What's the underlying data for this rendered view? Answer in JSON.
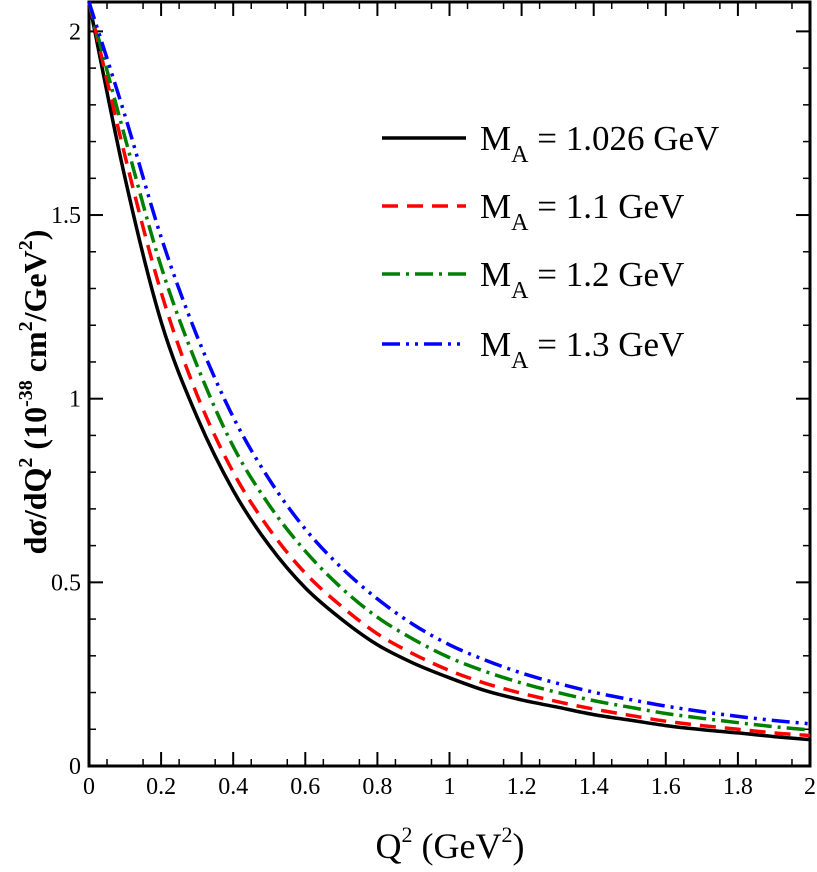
{
  "chart_data": {
    "type": "line",
    "title": "",
    "xlabel": {
      "base": "Q",
      "sup": "2",
      "unit_open": " (GeV",
      "unit_sup": "2",
      "unit_close": ")"
    },
    "ylabel": {
      "base": "dσ/dQ",
      "sup1": "2",
      "unit_open": " (10",
      "exp": "-38",
      "mid": " cm",
      "sup2": "2",
      "mid2": "/GeV",
      "sup3": "2",
      "close": ")"
    },
    "xlim": [
      0,
      2
    ],
    "ylim": [
      0,
      2.08
    ],
    "x_ticks": [
      "0",
      "0.2",
      "0.4",
      "0.6",
      "0.8",
      "1",
      "1.2",
      "1.4",
      "1.6",
      "1.8",
      "2"
    ],
    "x_tick_values": [
      0,
      0.2,
      0.4,
      0.6,
      0.8,
      1,
      1.2,
      1.4,
      1.6,
      1.8,
      2
    ],
    "y_ticks": [
      "0",
      "0.5",
      "1",
      "1.5",
      "2"
    ],
    "y_tick_values": [
      0,
      0.5,
      1,
      1.5,
      2
    ],
    "x": [
      0,
      0.1,
      0.2,
      0.3,
      0.4,
      0.5,
      0.6,
      0.7,
      0.8,
      0.9,
      1.0,
      1.1,
      1.2,
      1.3,
      1.4,
      1.5,
      1.6,
      1.7,
      1.8,
      1.9,
      2.0
    ],
    "series": [
      {
        "name": "M",
        "sub": "A",
        "value_text": " = 1.026 GeV",
        "color": "#000000",
        "dash": "",
        "values": [
          2.08,
          1.6,
          1.21,
          0.95,
          0.75,
          0.6,
          0.485,
          0.4,
          0.33,
          0.28,
          0.24,
          0.205,
          0.18,
          0.16,
          0.14,
          0.125,
          0.11,
          0.099,
          0.09,
          0.08,
          0.072
        ]
      },
      {
        "name": "M",
        "sub": "A",
        "value_text": " = 1.1 GeV",
        "color": "#ff0000",
        "dash": "16 9",
        "values": [
          2.08,
          1.66,
          1.29,
          1.01,
          0.8,
          0.645,
          0.525,
          0.435,
          0.36,
          0.305,
          0.26,
          0.225,
          0.198,
          0.175,
          0.155,
          0.138,
          0.122,
          0.11,
          0.1,
          0.09,
          0.083
        ]
      },
      {
        "name": "M",
        "sub": "A",
        "value_text": " = 1.2 GeV",
        "color": "#008000",
        "dash": "18 6 3 6",
        "values": [
          2.08,
          1.71,
          1.36,
          1.09,
          0.87,
          0.71,
          0.585,
          0.485,
          0.405,
          0.345,
          0.295,
          0.257,
          0.226,
          0.2,
          0.178,
          0.16,
          0.143,
          0.13,
          0.118,
          0.107,
          0.098
        ]
      },
      {
        "name": "M",
        "sub": "A",
        "value_text": " = 1.3 GeV",
        "color": "#0000ff",
        "dash": "18 6 3 6 3 6",
        "values": [
          2.08,
          1.77,
          1.44,
          1.17,
          0.95,
          0.78,
          0.645,
          0.54,
          0.455,
          0.385,
          0.33,
          0.288,
          0.253,
          0.225,
          0.201,
          0.181,
          0.163,
          0.148,
          0.135,
          0.124,
          0.115
        ]
      }
    ],
    "legend_position": "top-right"
  }
}
